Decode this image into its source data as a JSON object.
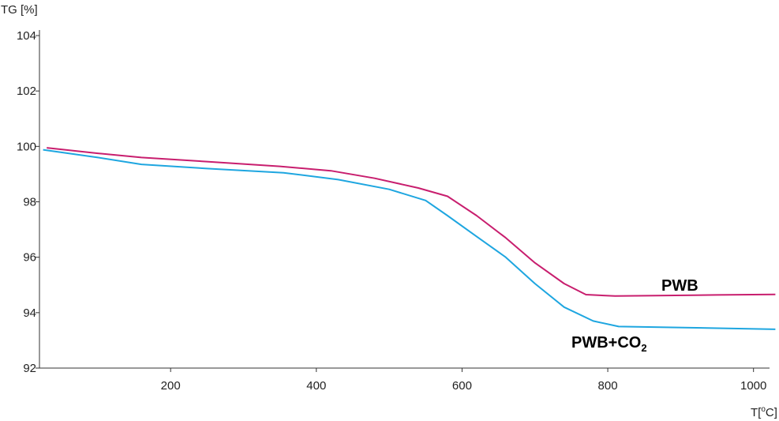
{
  "chart_data": {
    "type": "line",
    "ylabel": "TG [%]",
    "xlabel_prefix": "T[",
    "xlabel_unit": "°C",
    "xlabel_suffix": "]",
    "xlim": [
      20,
      1035
    ],
    "ylim": [
      92,
      104.2
    ],
    "x_ticks": [
      200,
      400,
      600,
      800,
      1000
    ],
    "y_ticks": [
      92,
      94,
      96,
      98,
      100,
      102,
      104
    ],
    "grid": false,
    "series": [
      {
        "name": "PWB",
        "color": "#c81e6e",
        "label_text": "PWB",
        "x": [
          30,
          100,
          160,
          250,
          350,
          420,
          480,
          540,
          580,
          620,
          660,
          700,
          740,
          770,
          810,
          880,
          950,
          1030
        ],
        "y": [
          99.95,
          99.75,
          99.6,
          99.45,
          99.28,
          99.12,
          98.85,
          98.5,
          98.2,
          97.5,
          96.7,
          95.8,
          95.05,
          94.65,
          94.6,
          94.62,
          94.64,
          94.66
        ]
      },
      {
        "name": "PWB+CO₂",
        "color": "#1ea6e0",
        "label_text": "PWB+CO",
        "label_sub": "2",
        "x": [
          25,
          100,
          160,
          250,
          355,
          430,
          500,
          550,
          580,
          620,
          660,
          700,
          740,
          780,
          815,
          880,
          950,
          1030
        ],
        "y": [
          99.88,
          99.6,
          99.35,
          99.2,
          99.05,
          98.8,
          98.45,
          98.05,
          97.5,
          96.75,
          96.0,
          95.05,
          94.2,
          93.7,
          93.5,
          93.47,
          93.44,
          93.4
        ]
      }
    ]
  }
}
